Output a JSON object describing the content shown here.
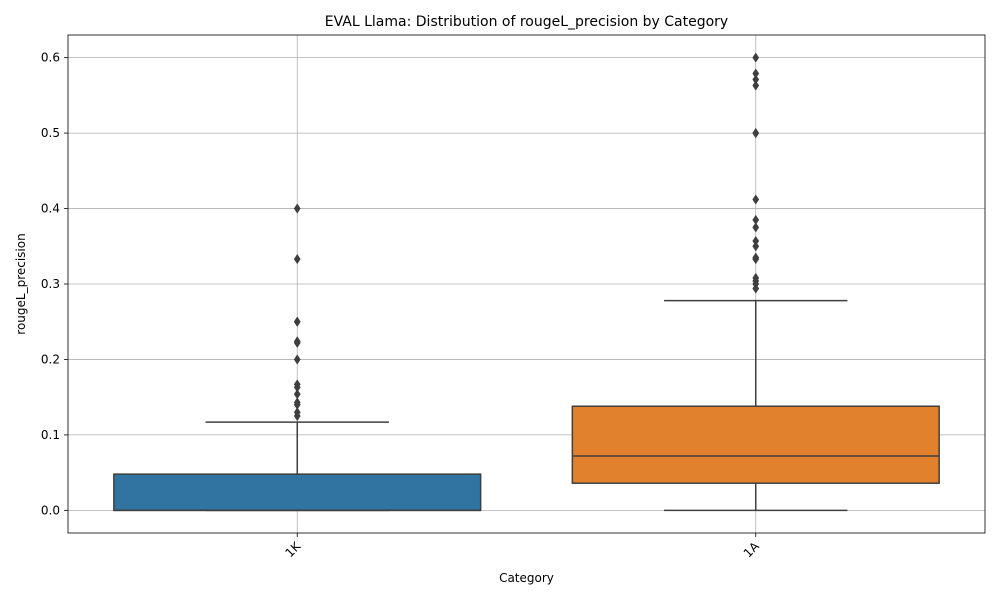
{
  "chart_data": {
    "type": "box",
    "title": "EVAL Llama: Distribution of rougeL_precision by Category",
    "xlabel": "Category",
    "ylabel": "rougeL_precision",
    "ylim": [
      -0.03,
      0.63
    ],
    "yticks": [
      0.0,
      0.1,
      0.2,
      0.3,
      0.4,
      0.5,
      0.6
    ],
    "ytick_labels": [
      "0.0",
      "0.1",
      "0.2",
      "0.3",
      "0.4",
      "0.5",
      "0.6"
    ],
    "grid": true,
    "categories": [
      "1K",
      "1A"
    ],
    "boxes": [
      {
        "category": "1K",
        "color": "#3274a1",
        "whisker_low": 0.0,
        "q1": 0.0,
        "median": 0.0,
        "q3": 0.048,
        "whisker_high": 0.117,
        "outliers": [
          0.125,
          0.13,
          0.14,
          0.143,
          0.154,
          0.163,
          0.167,
          0.2,
          0.222,
          0.224,
          0.25,
          0.25,
          0.333,
          0.4
        ]
      },
      {
        "category": "1A",
        "color": "#e1812c",
        "whisker_low": 0.0,
        "q1": 0.036,
        "median": 0.072,
        "q3": 0.138,
        "whisker_high": 0.278,
        "outliers": [
          0.294,
          0.3,
          0.304,
          0.308,
          0.333,
          0.335,
          0.35,
          0.357,
          0.375,
          0.385,
          0.412,
          0.5,
          0.5,
          0.563,
          0.571,
          0.579,
          0.6
        ]
      }
    ]
  }
}
